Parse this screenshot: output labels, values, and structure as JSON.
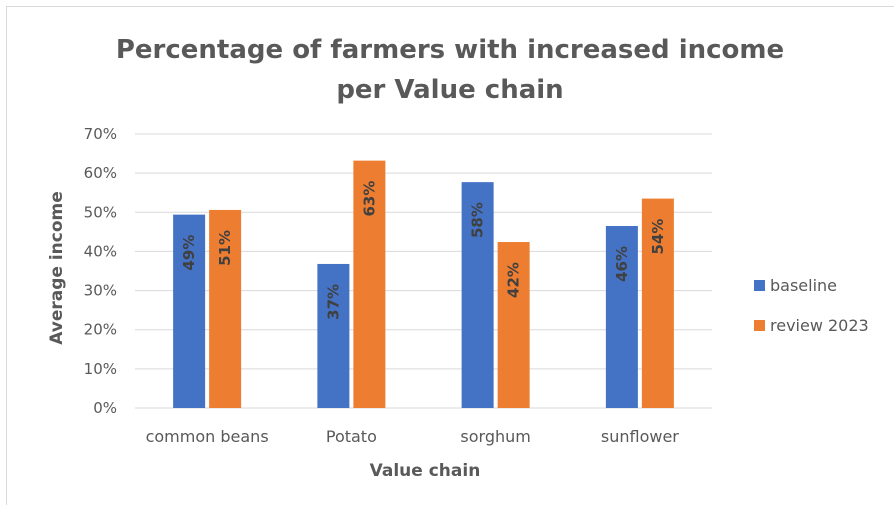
{
  "chart_data": {
    "type": "bar",
    "title": [
      "Percentage of farmers with increased income",
      "per Value chain"
    ],
    "xlabel": "Value chain",
    "ylabel": "Average income",
    "categories": [
      "common beans",
      "Potato",
      "sorghum",
      "sunflower"
    ],
    "ylim": [
      0,
      0.7
    ],
    "yticks": [
      "0%",
      "10%",
      "20%",
      "30%",
      "40%",
      "50%",
      "60%",
      "70%"
    ],
    "grid": true,
    "legend_position": "right",
    "series": [
      {
        "name": "baseline",
        "color": "#4472C4",
        "values": [
          0.494,
          0.368,
          0.577,
          0.465
        ],
        "labels": [
          "49%",
          "37%",
          "58%",
          "46%"
        ]
      },
      {
        "name": "review 2023",
        "color": "#ED7D31",
        "values": [
          0.506,
          0.632,
          0.424,
          0.535
        ],
        "labels": [
          "51%",
          "63%",
          "42%",
          "54%"
        ]
      }
    ]
  }
}
